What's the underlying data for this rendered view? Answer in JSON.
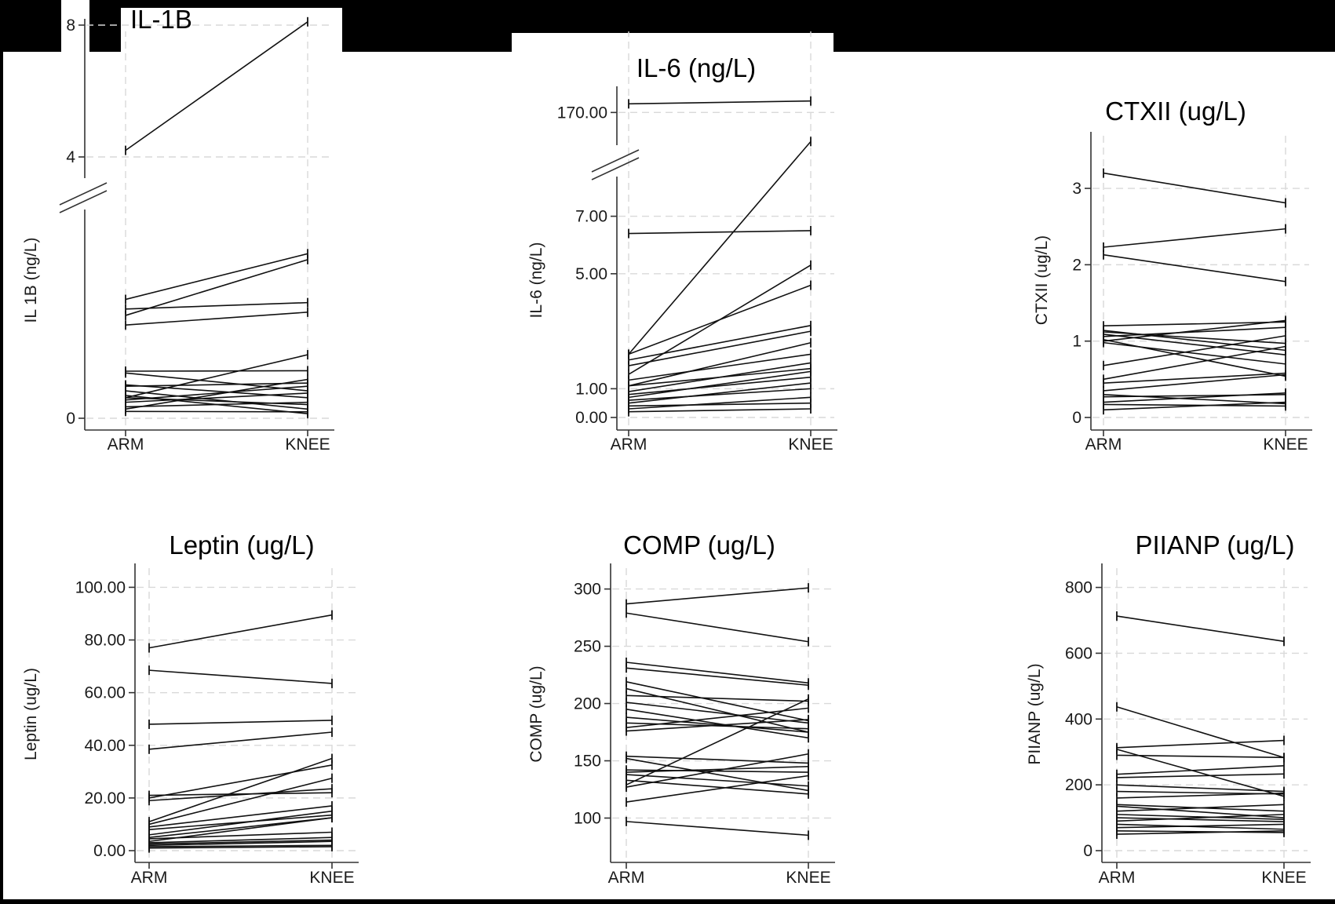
{
  "colors": {
    "background": "#ffffff",
    "line": "#111111",
    "grid": "#d9d9d9",
    "header_band": "#000000"
  },
  "chart_data": [
    {
      "type": "line",
      "title": "IL-1B",
      "xlabel": "",
      "ylabel": "IL 1B (ng/L)",
      "categories": [
        "ARM",
        "KNEE"
      ],
      "axis_break": true,
      "segments": [
        {
          "ylim": [
            0,
            0.4
          ],
          "ticks": [
            0
          ],
          "tick_labels": [
            "0"
          ]
        },
        {
          "ylim": [
            4,
            8
          ],
          "ticks": [
            4,
            8
          ],
          "tick_labels": [
            "4",
            "8"
          ]
        }
      ],
      "series": [
        {
          "values": [
            4.2,
            8.1
          ]
        },
        {
          "values": [
            0.26,
            0.36
          ]
        },
        {
          "values": [
            0.225,
            0.347
          ]
        },
        {
          "values": [
            0.239,
            0.253
          ]
        },
        {
          "values": [
            0.204,
            0.232
          ]
        },
        {
          "values": [
            0.045,
            0.139
          ]
        },
        {
          "values": [
            0.103,
            0.104
          ]
        },
        {
          "values": [
            0.099,
            0.06
          ]
        },
        {
          "values": [
            0.07,
            0.077
          ]
        },
        {
          "values": [
            0.073,
            0.045
          ]
        },
        {
          "values": [
            0.04,
            0.07
          ]
        },
        {
          "values": [
            0.045,
            0.03
          ]
        },
        {
          "values": [
            0.035,
            0.055
          ]
        },
        {
          "values": [
            0.025,
            0.035
          ]
        },
        {
          "values": [
            0.015,
            0.014
          ]
        },
        {
          "values": [
            0.02,
            0.085
          ]
        },
        {
          "values": [
            0.06,
            0.02
          ]
        },
        {
          "values": [
            0.05,
            0.01
          ]
        }
      ]
    },
    {
      "type": "line",
      "title": "IL-6 (ng/L)",
      "xlabel": "",
      "ylabel": "IL-6 (ng/L)",
      "categories": [
        "ARM",
        "KNEE"
      ],
      "axis_break": true,
      "segments": [
        {
          "ylim": [
            0,
            9.5
          ],
          "ticks": [
            0,
            1,
            5,
            7
          ],
          "tick_labels": [
            "0.00",
            "1.00",
            "5.00",
            "7.00"
          ]
        },
        {
          "ylim": [
            169,
            172
          ],
          "ticks": [
            170
          ],
          "tick_labels": [
            "170.00"
          ]
        }
      ],
      "series": [
        {
          "values": [
            170.3,
            170.4
          ]
        },
        {
          "values": [
            2.2,
            9.6
          ]
        },
        {
          "values": [
            6.4,
            6.5
          ]
        },
        {
          "values": [
            1.5,
            5.3
          ]
        },
        {
          "values": [
            2.2,
            4.6
          ]
        },
        {
          "values": [
            2.0,
            3.2
          ]
        },
        {
          "values": [
            1.8,
            3.0
          ]
        },
        {
          "values": [
            1.3,
            2.2
          ]
        },
        {
          "values": [
            1.1,
            2.6
          ]
        },
        {
          "values": [
            0.9,
            1.9
          ]
        },
        {
          "values": [
            1.1,
            1.7
          ]
        },
        {
          "values": [
            0.7,
            1.6
          ]
        },
        {
          "values": [
            0.8,
            1.4
          ]
        },
        {
          "values": [
            0.5,
            1.2
          ]
        },
        {
          "values": [
            0.6,
            1.0
          ]
        },
        {
          "values": [
            0.3,
            0.7
          ]
        },
        {
          "values": [
            0.4,
            0.5
          ]
        },
        {
          "values": [
            0.2,
            0.3
          ]
        }
      ]
    },
    {
      "type": "line",
      "title": "CTXII (ug/L)",
      "xlabel": "",
      "ylabel": "CTXII (ug/L)",
      "categories": [
        "ARM",
        "KNEE"
      ],
      "ylim": [
        0,
        3.35
      ],
      "ticks": [
        0,
        1,
        2,
        3
      ],
      "tick_labels": [
        "0",
        "1",
        "2",
        "3"
      ],
      "series": [
        {
          "values": [
            3.2,
            2.81
          ]
        },
        {
          "values": [
            2.23,
            2.47
          ]
        },
        {
          "values": [
            2.13,
            1.78
          ]
        },
        {
          "values": [
            1.2,
            1.25
          ]
        },
        {
          "values": [
            1.14,
            0.88
          ]
        },
        {
          "values": [
            1.12,
            0.97
          ]
        },
        {
          "values": [
            1.09,
            0.82
          ]
        },
        {
          "values": [
            1.06,
            1.18
          ]
        },
        {
          "values": [
            1.02,
            0.54
          ]
        },
        {
          "values": [
            1.0,
            1.27
          ]
        },
        {
          "values": [
            0.98,
            0.7
          ]
        },
        {
          "values": [
            0.68,
            1.07
          ]
        },
        {
          "values": [
            0.5,
            0.93
          ]
        },
        {
          "values": [
            0.45,
            0.58
          ]
        },
        {
          "values": [
            0.35,
            0.56
          ]
        },
        {
          "values": [
            0.3,
            0.18
          ]
        },
        {
          "values": [
            0.27,
            0.3
          ]
        },
        {
          "values": [
            0.2,
            0.32
          ]
        },
        {
          "values": [
            0.17,
            0.15
          ]
        },
        {
          "values": [
            0.1,
            0.2
          ]
        }
      ]
    },
    {
      "type": "line",
      "title": "Leptin (ug/L)",
      "xlabel": "",
      "ylabel": "Leptin (ug/L)",
      "categories": [
        "ARM",
        "KNEE"
      ],
      "ylim": [
        0,
        104
      ],
      "ticks": [
        0,
        20,
        40,
        60,
        80,
        100
      ],
      "tick_labels": [
        "0.00",
        "20.00",
        "40.00",
        "60.00",
        "80.00",
        "100.00"
      ],
      "series": [
        {
          "values": [
            77,
            89.5
          ]
        },
        {
          "values": [
            68.5,
            63.5
          ]
        },
        {
          "values": [
            48,
            49.5
          ]
        },
        {
          "values": [
            38.5,
            45
          ]
        },
        {
          "values": [
            21,
            22
          ]
        },
        {
          "values": [
            20,
            32.5
          ]
        },
        {
          "values": [
            19,
            23.5
          ]
        },
        {
          "values": [
            11,
            35
          ]
        },
        {
          "values": [
            10,
            27.5
          ]
        },
        {
          "values": [
            9,
            17
          ]
        },
        {
          "values": [
            8,
            13.5
          ]
        },
        {
          "values": [
            6,
            15
          ]
        },
        {
          "values": [
            5,
            12.5
          ]
        },
        {
          "values": [
            4.5,
            7
          ]
        },
        {
          "values": [
            3.5,
            12.5
          ]
        },
        {
          "values": [
            3,
            5
          ]
        },
        {
          "values": [
            2.5,
            4
          ]
        },
        {
          "values": [
            2,
            3.5
          ]
        },
        {
          "values": [
            1.5,
            2
          ]
        },
        {
          "values": [
            1,
            1.5
          ]
        }
      ]
    },
    {
      "type": "line",
      "title": "COMP (ug/L)",
      "xlabel": "",
      "ylabel": "COMP (ug/L)",
      "categories": [
        "ARM",
        "KNEE"
      ],
      "ylim": [
        88,
        310
      ],
      "ticks": [
        100,
        150,
        200,
        250,
        300
      ],
      "tick_labels": [
        "100",
        "150",
        "200",
        "250",
        "300"
      ],
      "series": [
        {
          "values": [
            287,
            301
          ]
        },
        {
          "values": [
            279,
            254
          ]
        },
        {
          "values": [
            236,
            218
          ]
        },
        {
          "values": [
            231,
            216
          ]
        },
        {
          "values": [
            219,
            185
          ]
        },
        {
          "values": [
            213,
            175
          ]
        },
        {
          "values": [
            207,
            202
          ]
        },
        {
          "values": [
            201,
            183
          ]
        },
        {
          "values": [
            195,
            170
          ]
        },
        {
          "values": [
            188,
            175
          ]
        },
        {
          "values": [
            183,
            178
          ]
        },
        {
          "values": [
            179,
            196
          ]
        },
        {
          "values": [
            176,
            186
          ]
        },
        {
          "values": [
            154,
            148
          ]
        },
        {
          "values": [
            152,
            124
          ]
        },
        {
          "values": [
            142,
            140
          ]
        },
        {
          "values": [
            140,
            145
          ]
        },
        {
          "values": [
            138,
            128
          ]
        },
        {
          "values": [
            133,
            121
          ]
        },
        {
          "values": [
            129,
            204
          ]
        },
        {
          "values": [
            127,
            156
          ]
        },
        {
          "values": [
            114,
            137
          ]
        },
        {
          "values": [
            97,
            85
          ]
        }
      ]
    },
    {
      "type": "line",
      "title": "PIIANP (ug/L)",
      "xlabel": "",
      "ylabel": "PIIANP (ug/L)",
      "categories": [
        "ARM",
        "KNEE"
      ],
      "ylim": [
        0,
        830
      ],
      "ticks": [
        0,
        200,
        400,
        600,
        800
      ],
      "tick_labels": [
        "0",
        "200",
        "400",
        "600",
        "800"
      ],
      "series": [
        {
          "values": [
            713,
            636
          ]
        },
        {
          "values": [
            437,
            283
          ]
        },
        {
          "values": [
            313,
            335
          ]
        },
        {
          "values": [
            308,
            165
          ]
        },
        {
          "values": [
            290,
            283
          ]
        },
        {
          "values": [
            232,
            258
          ]
        },
        {
          "values": [
            222,
            233
          ]
        },
        {
          "values": [
            200,
            180
          ]
        },
        {
          "values": [
            180,
            172
          ]
        },
        {
          "values": [
            160,
            175
          ]
        },
        {
          "values": [
            140,
            120
          ]
        },
        {
          "values": [
            135,
            100
          ]
        },
        {
          "values": [
            120,
            140
          ]
        },
        {
          "values": [
            110,
            95
          ]
        },
        {
          "values": [
            100,
            88
          ]
        },
        {
          "values": [
            90,
            110
          ]
        },
        {
          "values": [
            80,
            65
          ]
        },
        {
          "values": [
            70,
            80
          ]
        },
        {
          "values": [
            60,
            55
          ]
        },
        {
          "values": [
            50,
            60
          ]
        }
      ]
    }
  ]
}
